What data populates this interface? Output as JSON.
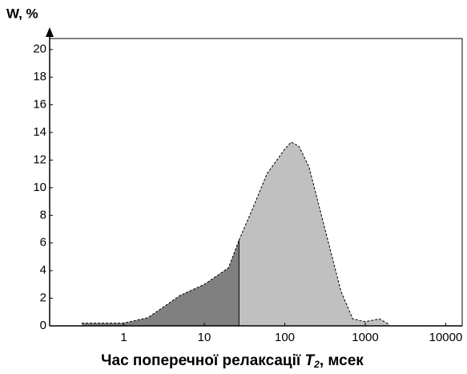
{
  "chart_data": {
    "type": "area",
    "log_x": true,
    "ylabel": "W, %",
    "xlabel": [
      "Час поперечної релаксації ",
      "T",
      "2",
      ", мсек"
    ],
    "series": [
      {
        "color": "#808080",
        "x": [
          0.3,
          1,
          2,
          3,
          5,
          10,
          20,
          27
        ],
        "values": [
          0.2,
          0.2,
          0.6,
          1.3,
          2.2,
          3.0,
          4.2,
          6.2
        ]
      },
      {
        "color": "#c0c0c0",
        "x": [
          27,
          40,
          60,
          100,
          120,
          150,
          200,
          300,
          500,
          700,
          1000,
          1500,
          2000
        ],
        "values": [
          6.2,
          8.5,
          11,
          12.8,
          13.3,
          13.0,
          11.5,
          7.5,
          2.5,
          0.5,
          0.3,
          0.5,
          0.1
        ]
      }
    ],
    "xlim": [
      0.12,
      16000
    ],
    "xticks": [
      1,
      10,
      100,
      1000,
      10000
    ],
    "ylim": [
      0,
      20.8
    ],
    "yticks": [
      0,
      2,
      4,
      6,
      8,
      10,
      12,
      14,
      16,
      18,
      20
    ]
  }
}
